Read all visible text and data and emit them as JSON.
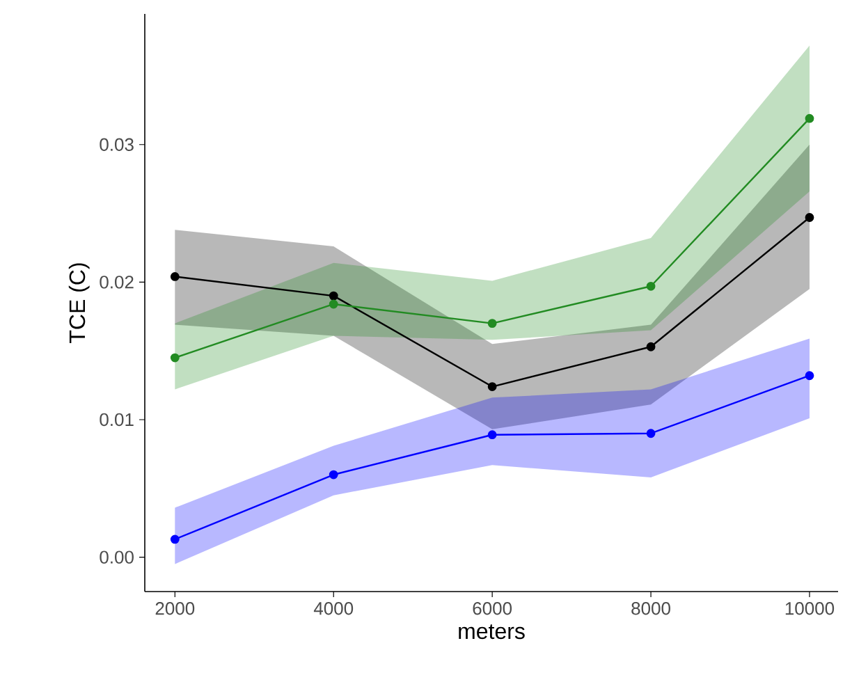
{
  "chart_data": {
    "type": "line",
    "xlabel": "meters",
    "ylabel": "TCE (C)",
    "x": [
      2000,
      4000,
      6000,
      8000,
      10000
    ],
    "xlim": [
      1620,
      10360
    ],
    "ylim": [
      -0.0025,
      0.0395
    ],
    "xticks": [
      2000,
      4000,
      6000,
      8000,
      10000
    ],
    "yticks": [
      {
        "value": 0,
        "label": "0.00"
      },
      {
        "value": 0.01,
        "label": "0.01"
      },
      {
        "value": 0.02,
        "label": "0.02"
      },
      {
        "value": 0.03,
        "label": "0.03"
      }
    ],
    "grid": false,
    "marker": "circle",
    "line_style": "solid",
    "series": [
      {
        "color": "#000000",
        "values": [
          0.0204,
          0.019,
          0.0124,
          0.0153,
          0.0247
        ],
        "lower": [
          0.0169,
          0.0161,
          0.0093,
          0.0111,
          0.0195
        ],
        "upper": [
          0.0238,
          0.0226,
          0.0155,
          0.0169,
          0.03
        ]
      },
      {
        "color": "#228b22",
        "values": [
          0.0145,
          0.0184,
          0.017,
          0.0197,
          0.0319
        ],
        "lower": [
          0.0122,
          0.0161,
          0.0158,
          0.0165,
          0.0266
        ],
        "upper": [
          0.017,
          0.0214,
          0.0201,
          0.0232,
          0.0372
        ]
      },
      {
        "color": "#0000ff",
        "values": [
          0.0013,
          0.006,
          0.0089,
          0.009,
          0.0132
        ],
        "lower": [
          -0.0005,
          0.0045,
          0.0067,
          0.0058,
          0.0101
        ],
        "upper": [
          0.0036,
          0.0081,
          0.0116,
          0.0122,
          0.0159
        ]
      }
    ]
  }
}
